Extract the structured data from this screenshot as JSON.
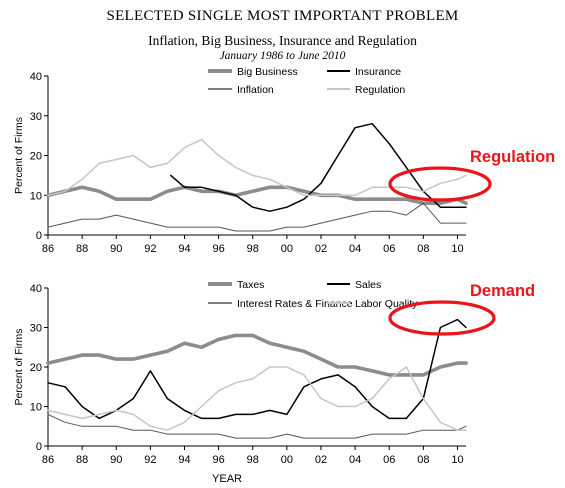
{
  "header": {
    "title": "SELECTED SINGLE MOST IMPORTANT PROBLEM",
    "subtitle": "Inflation, Big Business, Insurance and Regulation",
    "date_range": "January 1986 to June 2010"
  },
  "annotations": {
    "top": "Regulation",
    "bottom": "Demand",
    "color": "#e8161b"
  },
  "chart_data": [
    {
      "type": "line",
      "ylabel": "Percent of Firms",
      "xlabel": "",
      "xlim": [
        1986,
        2010.5
      ],
      "ylim": [
        0,
        40
      ],
      "y_ticks": [
        "0",
        "10",
        "20",
        "30",
        "40"
      ],
      "x_ticks": [
        "86",
        "88",
        "90",
        "92",
        "94",
        "96",
        "98",
        "00",
        "02",
        "04",
        "06",
        "08",
        "10"
      ],
      "legend_placement": "top",
      "x": [
        1986,
        1987,
        1988,
        1989,
        1990,
        1991,
        1992,
        1993,
        1994,
        1995,
        1996,
        1997,
        1998,
        1999,
        2000,
        2001,
        2002,
        2003,
        2004,
        2005,
        2006,
        2007,
        2008,
        2009,
        2010,
        2010.5
      ],
      "series": [
        {
          "name": "Big Business",
          "color": "#8c8c8c",
          "width": 3.6,
          "values": [
            10,
            11,
            12,
            11,
            9,
            9,
            9,
            11,
            12,
            11,
            11,
            10,
            11,
            12,
            12,
            11,
            10,
            10,
            9,
            9,
            9,
            9,
            8,
            8,
            9,
            8
          ]
        },
        {
          "name": "Insurance",
          "color": "#000000",
          "width": 1.5,
          "start": 1993.2,
          "values": [
            null,
            null,
            null,
            null,
            null,
            null,
            null,
            15,
            12,
            12,
            11,
            10,
            7,
            6,
            7,
            9,
            13,
            20,
            27,
            28,
            23,
            17,
            11,
            7,
            7,
            7
          ]
        },
        {
          "name": "Inflation",
          "color": "#555555",
          "width": 1.0,
          "values": [
            2,
            3,
            4,
            4,
            5,
            4,
            3,
            2,
            2,
            2,
            2,
            1,
            1,
            1,
            2,
            2,
            3,
            4,
            5,
            6,
            6,
            5,
            8,
            3,
            3,
            3
          ]
        },
        {
          "name": "Regulation",
          "color": "#c6c6c6",
          "width": 1.5,
          "values": [
            10,
            11,
            14,
            18,
            19,
            20,
            17,
            18,
            22,
            24,
            20,
            17,
            15,
            14,
            12,
            10,
            10,
            10,
            10,
            12,
            12,
            12,
            11,
            13,
            14,
            15
          ]
        }
      ]
    },
    {
      "type": "line",
      "ylabel": "Percent of Firms",
      "xlabel": "YEAR",
      "xlim": [
        1986,
        2010.5
      ],
      "ylim": [
        0,
        40
      ],
      "y_ticks": [
        "0",
        "10",
        "20",
        "30",
        "40"
      ],
      "x_ticks": [
        "86",
        "88",
        "90",
        "92",
        "94",
        "96",
        "98",
        "00",
        "02",
        "04",
        "06",
        "08",
        "10"
      ],
      "legend_placement": "top",
      "x": [
        1986,
        1987,
        1988,
        1989,
        1990,
        1991,
        1992,
        1993,
        1994,
        1995,
        1996,
        1997,
        1998,
        1999,
        2000,
        2001,
        2002,
        2003,
        2004,
        2005,
        2006,
        2007,
        2008,
        2009,
        2010,
        2010.5
      ],
      "series": [
        {
          "name": "Taxes",
          "color": "#8c8c8c",
          "width": 3.6,
          "values": [
            21,
            22,
            23,
            23,
            22,
            22,
            23,
            24,
            26,
            25,
            27,
            28,
            28,
            26,
            25,
            24,
            22,
            20,
            20,
            19,
            18,
            18,
            18,
            20,
            21,
            21
          ]
        },
        {
          "name": "Sales",
          "color": "#000000",
          "width": 1.5,
          "values": [
            16,
            15,
            10,
            7,
            9,
            12,
            19,
            12,
            9,
            7,
            7,
            8,
            8,
            9,
            8,
            15,
            17,
            18,
            15,
            10,
            7,
            7,
            12,
            30,
            32,
            30
          ]
        },
        {
          "name": "Interest Rates & Finance",
          "color": "#555555",
          "width": 1.0,
          "values": [
            8,
            6,
            5,
            5,
            5,
            4,
            4,
            3,
            3,
            3,
            3,
            2,
            2,
            2,
            3,
            2,
            2,
            2,
            2,
            3,
            3,
            3,
            4,
            4,
            4,
            5
          ]
        },
        {
          "name": "Labor Quality",
          "color": "#c6c6c6",
          "width": 1.5,
          "values": [
            9,
            8,
            7,
            8,
            9,
            8,
            5,
            4,
            6,
            10,
            14,
            16,
            17,
            20,
            20,
            18,
            12,
            10,
            10,
            12,
            17,
            20,
            12,
            6,
            4,
            4
          ]
        }
      ]
    }
  ]
}
